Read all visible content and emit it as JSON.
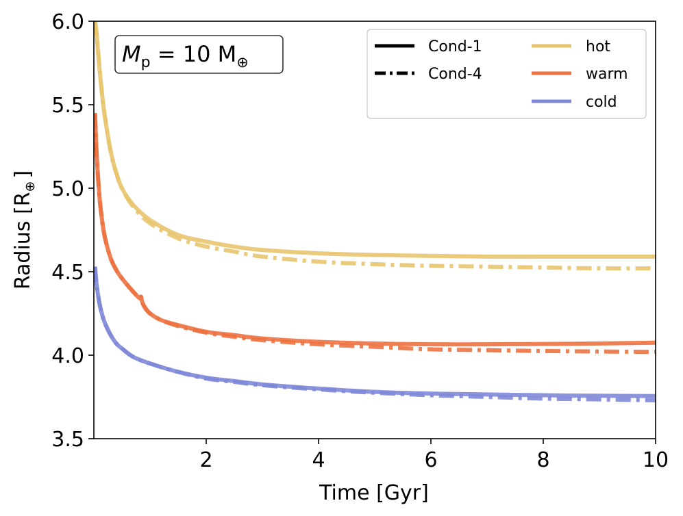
{
  "chart_data": {
    "type": "line",
    "title": "",
    "xlabel": "Time [Gyr]",
    "ylabel_main": "Radius [R",
    "ylabel_symbol": "⊕",
    "ylabel_close": "]",
    "xlim": [
      0.02,
      10
    ],
    "ylim": [
      3.5,
      6.0
    ],
    "xticks": [
      2,
      4,
      6,
      8,
      10
    ],
    "xtick_labels": [
      "2",
      "4",
      "6",
      "8",
      "10"
    ],
    "yticks": [
      3.5,
      4.0,
      4.5,
      5.0,
      5.5,
      6.0
    ],
    "ytick_labels": [
      "3.5",
      "4.0",
      "4.5",
      "5.0",
      "5.5",
      "6.0"
    ],
    "annotation": {
      "symbol": "M",
      "subscript": "p",
      "rest": " = 10 M",
      "earth": "⊕"
    },
    "legend": {
      "placement": "top-right",
      "styles": [
        {
          "label": "Cond-1",
          "dash": "solid"
        },
        {
          "label": "Cond-4",
          "dash": "dashdot"
        }
      ],
      "colors": [
        {
          "label": "hot",
          "color": "#e8c46e"
        },
        {
          "label": "warm",
          "color": "#ec7240"
        },
        {
          "label": "cold",
          "color": "#8088d8"
        }
      ]
    },
    "series": [
      {
        "name": "hot Cond-1",
        "color": "#e8c46e",
        "dash": "solid",
        "x": [
          0.02,
          0.05,
          0.1,
          0.15,
          0.2,
          0.3,
          0.4,
          0.5,
          0.7,
          1.0,
          1.5,
          2.0,
          2.5,
          3.0,
          4.0,
          5.0,
          6.0,
          7.0,
          8.0,
          9.0,
          10.0
        ],
        "y": [
          6.0,
          5.92,
          5.72,
          5.55,
          5.42,
          5.22,
          5.09,
          5.0,
          4.9,
          4.81,
          4.72,
          4.68,
          4.65,
          4.63,
          4.61,
          4.6,
          4.595,
          4.59,
          4.59,
          4.59,
          4.59
        ]
      },
      {
        "name": "hot Cond-4",
        "color": "#e8c46e",
        "dash": "dashdot",
        "x": [
          0.02,
          0.05,
          0.1,
          0.15,
          0.2,
          0.3,
          0.4,
          0.5,
          0.7,
          1.0,
          1.5,
          2.0,
          2.5,
          3.0,
          4.0,
          5.0,
          6.0,
          7.0,
          8.0,
          9.0,
          10.0
        ],
        "y": [
          6.0,
          5.92,
          5.72,
          5.55,
          5.42,
          5.22,
          5.09,
          5.0,
          4.89,
          4.79,
          4.7,
          4.65,
          4.62,
          4.59,
          4.56,
          4.545,
          4.535,
          4.53,
          4.525,
          4.52,
          4.52
        ]
      },
      {
        "name": "warm Cond-1",
        "color": "#ec7240",
        "dash": "solid",
        "x": [
          0.02,
          0.05,
          0.1,
          0.15,
          0.2,
          0.3,
          0.4,
          0.5,
          0.7,
          0.82,
          0.84,
          0.86,
          0.9,
          1.0,
          1.2,
          1.5,
          2.0,
          2.5,
          3.0,
          4.0,
          5.0,
          6.0,
          7.0,
          8.0,
          9.0,
          10.0
        ],
        "y": [
          5.45,
          5.2,
          4.95,
          4.8,
          4.7,
          4.58,
          4.51,
          4.46,
          4.38,
          4.34,
          4.35,
          4.32,
          4.29,
          4.25,
          4.21,
          4.18,
          4.14,
          4.12,
          4.1,
          4.08,
          4.07,
          4.065,
          4.065,
          4.067,
          4.07,
          4.075
        ]
      },
      {
        "name": "warm Cond-4",
        "color": "#ec7240",
        "dash": "dashdot",
        "x": [
          0.02,
          0.05,
          0.1,
          0.15,
          0.2,
          0.3,
          0.4,
          0.5,
          0.7,
          0.82,
          0.84,
          0.86,
          0.9,
          1.0,
          1.2,
          1.5,
          2.0,
          2.5,
          3.0,
          4.0,
          5.0,
          6.0,
          7.0,
          8.0,
          9.0,
          10.0
        ],
        "y": [
          5.45,
          5.2,
          4.95,
          4.8,
          4.7,
          4.58,
          4.51,
          4.46,
          4.38,
          4.34,
          4.35,
          4.32,
          4.29,
          4.25,
          4.21,
          4.175,
          4.135,
          4.11,
          4.09,
          4.065,
          4.05,
          4.035,
          4.03,
          4.025,
          4.022,
          4.02
        ]
      },
      {
        "name": "cold Cond-1",
        "color": "#8088d8",
        "dash": "solid",
        "x": [
          0.02,
          0.05,
          0.1,
          0.15,
          0.2,
          0.3,
          0.4,
          0.5,
          0.7,
          1.0,
          1.5,
          2.0,
          2.5,
          3.0,
          4.0,
          5.0,
          6.0,
          7.0,
          8.0,
          9.0,
          10.0
        ],
        "y": [
          4.53,
          4.42,
          4.31,
          4.24,
          4.19,
          4.12,
          4.07,
          4.04,
          3.99,
          3.95,
          3.9,
          3.865,
          3.845,
          3.825,
          3.8,
          3.78,
          3.77,
          3.765,
          3.76,
          3.757,
          3.755
        ]
      },
      {
        "name": "cold Cond-4",
        "color": "#8088d8",
        "dash": "dashdot",
        "x": [
          0.02,
          0.05,
          0.1,
          0.15,
          0.2,
          0.3,
          0.4,
          0.5,
          0.7,
          1.0,
          1.5,
          2.0,
          2.5,
          3.0,
          4.0,
          5.0,
          6.0,
          7.0,
          8.0,
          9.0,
          10.0
        ],
        "y": [
          4.53,
          4.42,
          4.31,
          4.24,
          4.19,
          4.12,
          4.07,
          4.04,
          3.99,
          3.95,
          3.9,
          3.86,
          3.84,
          3.82,
          3.795,
          3.775,
          3.76,
          3.75,
          3.74,
          3.735,
          3.73
        ]
      }
    ]
  }
}
